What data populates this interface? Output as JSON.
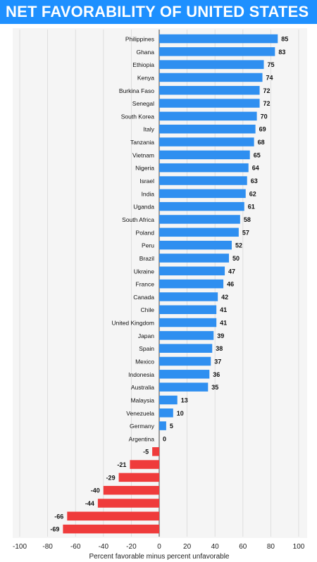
{
  "title": "NET FAVORABILITY OF UNITED STATES",
  "colors": {
    "title_background": "#1e90ff",
    "positive_bar": "#2f8ff0",
    "negative_bar": "#ef3b3b",
    "panel": "#f5f5f5",
    "grid": "#d8d8d8"
  },
  "chart_data": {
    "type": "bar",
    "orientation": "horizontal",
    "title": "NET FAVORABILITY OF UNITED STATES",
    "xlabel": "Percent favorable minus percent unfavorable",
    "ylabel": "",
    "xlim": [
      -100,
      100
    ],
    "x_ticks": [
      -100,
      -80,
      -60,
      -40,
      -20,
      0,
      20,
      40,
      60,
      80,
      100
    ],
    "grid": true,
    "categories": [
      "Philippines",
      "Ghana",
      "Ethiopia",
      "Kenya",
      "Burkina Faso",
      "Senegal",
      "South Korea",
      "Italy",
      "Tanzania",
      "Vietnam",
      "Nigeria",
      "Israel",
      "India",
      "Uganda",
      "South Africa",
      "Poland",
      "Peru",
      "Brazil",
      "Ukraine",
      "France",
      "Canada",
      "Chile",
      "United Kingdom",
      "Japan",
      "Spain",
      "Mexico",
      "Indonesia",
      "Australia",
      "Malaysia",
      "Venezuela",
      "Germany",
      "Argentina",
      "",
      "",
      "",
      "",
      "",
      "",
      ""
    ],
    "values": [
      85,
      83,
      75,
      74,
      72,
      72,
      70,
      69,
      68,
      65,
      64,
      63,
      62,
      61,
      58,
      57,
      52,
      50,
      47,
      46,
      42,
      41,
      41,
      39,
      38,
      37,
      36,
      35,
      13,
      10,
      5,
      0,
      -5,
      -21,
      -29,
      -40,
      -44,
      -66,
      -69
    ]
  }
}
